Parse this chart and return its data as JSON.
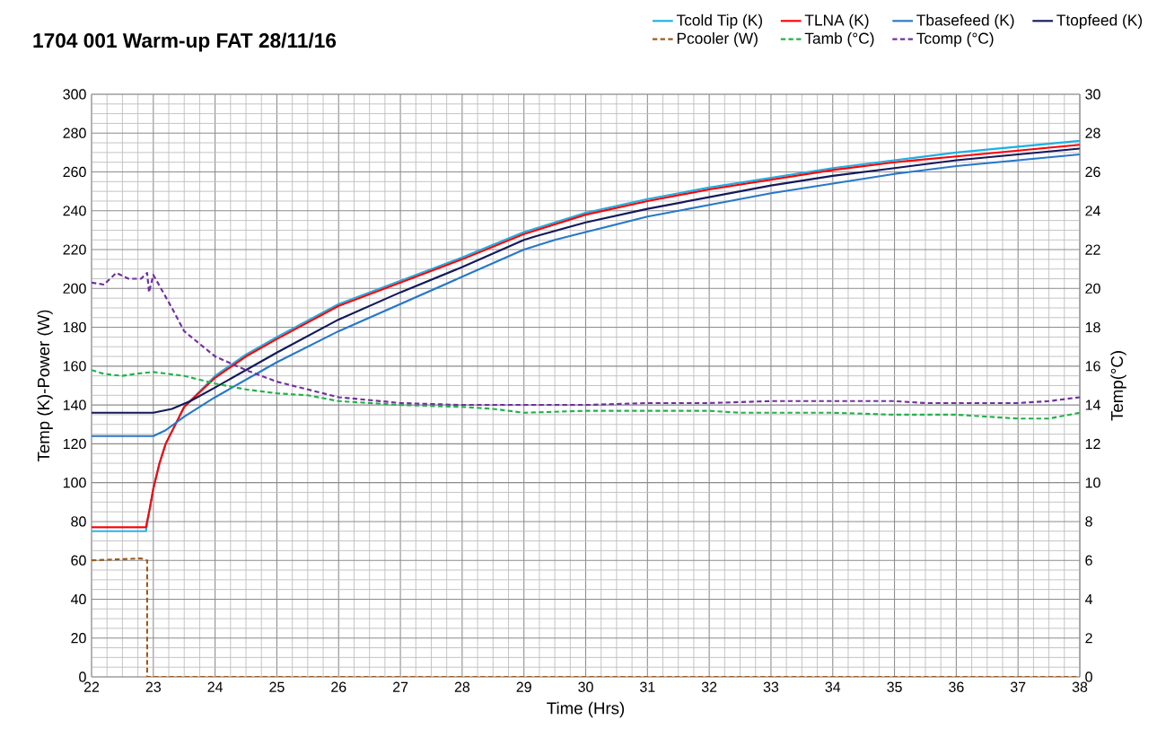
{
  "chart_data": {
    "type": "line",
    "title": "1704 001 Warm-up FAT 28/11/16",
    "xlabel": "Time (Hrs)",
    "ylabel": "Temp (K)-Power (W)",
    "y2label": "Temp(°C)",
    "xlim": [
      22,
      38
    ],
    "xticks": [
      22,
      23,
      24,
      25,
      26,
      27,
      28,
      29,
      30,
      31,
      32,
      33,
      34,
      35,
      36,
      37,
      38
    ],
    "ylim": [
      0,
      300
    ],
    "yticks": [
      0,
      20,
      40,
      60,
      80,
      100,
      120,
      140,
      160,
      180,
      200,
      220,
      240,
      260,
      280,
      300
    ],
    "y2lim": [
      0,
      30
    ],
    "y2ticks": [
      0,
      2,
      4,
      6,
      8,
      10,
      12,
      14,
      16,
      18,
      20,
      22,
      24,
      26,
      28,
      30
    ],
    "grid": true,
    "legend": "top",
    "marker": "none",
    "series": [
      {
        "name": "Tcold Tip (K)",
        "color": "#1ab0e8",
        "line_style": "solid",
        "x": [
          22,
          22.88,
          22.95,
          23,
          23.1,
          23.2,
          23.5,
          24,
          24.5,
          25,
          26,
          27,
          28,
          29,
          30,
          31,
          32,
          33,
          34,
          35,
          36,
          37,
          38
        ],
        "values": [
          75,
          75,
          88,
          97,
          110,
          120,
          139,
          155,
          166,
          175,
          192,
          204,
          216,
          229,
          239,
          246,
          252,
          257,
          262,
          266,
          270,
          273,
          276
        ]
      },
      {
        "name": "TLNA (K)",
        "color": "#ff0000",
        "line_style": "solid",
        "x": [
          22,
          22.88,
          22.95,
          23,
          23.1,
          23.2,
          23.5,
          24,
          24.5,
          25,
          26,
          27,
          28,
          29,
          30,
          31,
          32,
          33,
          34,
          35,
          36,
          37,
          38
        ],
        "values": [
          77,
          77,
          88,
          97,
          110,
          120,
          139,
          154,
          165,
          174,
          191,
          203,
          215,
          228,
          238,
          245,
          251,
          256,
          261,
          265,
          268,
          271,
          274
        ]
      },
      {
        "name": "Tbasefeed (K)",
        "color": "#2878c8",
        "line_style": "solid",
        "x": [
          22,
          23,
          23.2,
          23.5,
          24,
          25,
          26,
          27,
          28,
          29,
          29.5,
          30,
          31,
          32,
          33,
          34,
          35,
          36,
          37,
          38
        ],
        "values": [
          124,
          124,
          127,
          134,
          144,
          162,
          178,
          192,
          206,
          220,
          225,
          229,
          237,
          243,
          249,
          254,
          259,
          263,
          266,
          269
        ]
      },
      {
        "name": "Ttopfeed (K)",
        "color": "#13195a",
        "line_style": "solid",
        "x": [
          22,
          23,
          23.3,
          23.6,
          24,
          25,
          26,
          27,
          28,
          29,
          29.2,
          30,
          31,
          32,
          33,
          34,
          35,
          36,
          37,
          38
        ],
        "values": [
          136,
          136,
          138,
          142,
          149,
          167,
          184,
          198,
          211,
          225,
          227,
          234,
          241,
          247,
          253,
          258,
          262,
          266,
          269,
          272
        ]
      },
      {
        "name": "Pcooler (W)",
        "color": "#9c5b1c",
        "line_style": "dashed",
        "x": [
          22,
          22.8,
          22.9,
          22.9,
          38
        ],
        "values": [
          60,
          61,
          60,
          0,
          0
        ]
      },
      {
        "name": "Tamb (°C)",
        "color": "#21b24b",
        "line_style": "dashed",
        "axis": "y2",
        "x": [
          22,
          22.2,
          22.5,
          22.7,
          23,
          23.5,
          24,
          24.5,
          25,
          25.5,
          26,
          27,
          28,
          28.5,
          29,
          30,
          31,
          32,
          32.5,
          34,
          35,
          36,
          36.5,
          37,
          37.5,
          38
        ],
        "values": [
          15.8,
          15.6,
          15.5,
          15.6,
          15.7,
          15.5,
          15.1,
          14.8,
          14.6,
          14.5,
          14.2,
          14.0,
          13.9,
          13.8,
          13.6,
          13.7,
          13.7,
          13.7,
          13.6,
          13.6,
          13.5,
          13.5,
          13.4,
          13.3,
          13.3,
          13.6
        ]
      },
      {
        "name": "Tcomp (°C)",
        "color": "#7030a0",
        "line_style": "dashed",
        "axis": "y2",
        "x": [
          22,
          22.2,
          22.4,
          22.6,
          22.8,
          22.9,
          22.93,
          23,
          23.3,
          23.5,
          24,
          24.5,
          25,
          25.5,
          26,
          27,
          28,
          29,
          30,
          31,
          32,
          33,
          34,
          35,
          35.5,
          36,
          37,
          37.5,
          38
        ],
        "values": [
          20.3,
          20.2,
          20.8,
          20.5,
          20.5,
          20.8,
          19.8,
          20.7,
          19.0,
          17.8,
          16.5,
          15.8,
          15.2,
          14.8,
          14.4,
          14.1,
          14.0,
          14.0,
          14.0,
          14.1,
          14.1,
          14.2,
          14.2,
          14.2,
          14.1,
          14.1,
          14.1,
          14.2,
          14.4
        ]
      }
    ]
  }
}
